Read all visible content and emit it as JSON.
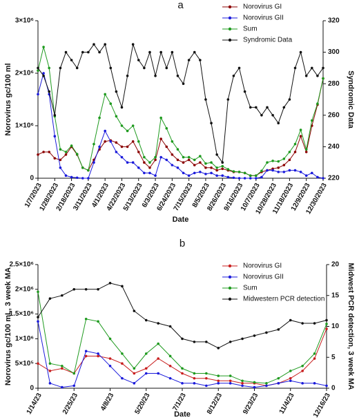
{
  "chart_data": [
    {
      "type": "line",
      "title": "a",
      "xlabel": "Date",
      "ylabel": "Norovirus gc/100 ml",
      "y2label": "Syndromic Data",
      "legend": "top-right",
      "x": [
        "2023-01-07",
        "2023-01-14",
        "2023-01-21",
        "2023-01-28",
        "2023-02-04",
        "2023-02-11",
        "2023-02-18",
        "2023-02-25",
        "2023-03-04",
        "2023-03-11",
        "2023-03-18",
        "2023-03-25",
        "2023-04-01",
        "2023-04-08",
        "2023-04-15",
        "2023-04-22",
        "2023-04-29",
        "2023-05-06",
        "2023-05-13",
        "2023-05-20",
        "2023-05-27",
        "2023-06-03",
        "2023-06-10",
        "2023-06-17",
        "2023-06-24",
        "2023-07-01",
        "2023-07-08",
        "2023-07-15",
        "2023-07-22",
        "2023-07-29",
        "2023-08-05",
        "2023-08-12",
        "2023-08-19",
        "2023-08-26",
        "2023-09-02",
        "2023-09-09",
        "2023-09-16",
        "2023-09-23",
        "2023-09-30",
        "2023-10-07",
        "2023-10-14",
        "2023-10-21",
        "2023-10-28",
        "2023-11-04",
        "2023-11-11",
        "2023-11-18",
        "2023-11-25",
        "2023-12-02",
        "2023-12-09",
        "2023-12-16",
        "2023-12-23",
        "2023-12-30"
      ],
      "xlim": [
        "2023-01-07",
        "2023-12-30"
      ],
      "xticks": [
        {
          "value": "2023-01-07",
          "label": "1/7/2023"
        },
        {
          "value": "2023-01-28",
          "label": "1/28/2023"
        },
        {
          "value": "2023-02-18",
          "label": "2/18/2023"
        },
        {
          "value": "2023-03-11",
          "label": "3/11/2023"
        },
        {
          "value": "2023-04-01",
          "label": "4/1/2023"
        },
        {
          "value": "2023-04-22",
          "label": "4/22/2023"
        },
        {
          "value": "2023-05-13",
          "label": "5/13/2023"
        },
        {
          "value": "2023-06-03",
          "label": "6/3/2023"
        },
        {
          "value": "2023-06-24",
          "label": "6/24/2023"
        },
        {
          "value": "2023-07-15",
          "label": "7/15/2023"
        },
        {
          "value": "2023-08-05",
          "label": "8/5/2023"
        },
        {
          "value": "2023-08-26",
          "label": "8/26/2023"
        },
        {
          "value": "2023-09-16",
          "label": "9/16/2023"
        },
        {
          "value": "2023-10-07",
          "label": "10/7/2023"
        },
        {
          "value": "2023-10-28",
          "label": "10/28/2023"
        },
        {
          "value": "2023-11-18",
          "label": "11/18/2023"
        },
        {
          "value": "2023-12-09",
          "label": "12/9/2023"
        },
        {
          "value": "2023-12-30",
          "label": "12/30/2023"
        }
      ],
      "ylim": [
        0,
        3000000
      ],
      "yticks": [
        0,
        {
          "value": 1000000,
          "label": "1×10⁶"
        },
        {
          "value": 2000000,
          "label": "2×10⁶"
        },
        {
          "value": 3000000,
          "label": "3×10⁶"
        }
      ],
      "y2lim": [
        220,
        320
      ],
      "y2ticks": [
        220,
        240,
        260,
        280,
        300,
        320
      ],
      "series": [
        {
          "name": "Norovirus GI",
          "color": "#8b0000",
          "values": [
            450000,
            500000,
            500000,
            380000,
            350000,
            450000,
            600000,
            450000,
            200000,
            150000,
            350000,
            550000,
            700000,
            720000,
            680000,
            600000,
            600000,
            700000,
            500000,
            300000,
            200000,
            350000,
            750000,
            600000,
            450000,
            350000,
            300000,
            350000,
            250000,
            300000,
            200000,
            200000,
            150000,
            180000,
            150000,
            120000,
            120000,
            100000,
            50000,
            50000,
            120000,
            150000,
            180000,
            200000,
            250000,
            350000,
            500000,
            800000,
            500000,
            1000000,
            1400000,
            1900000
          ]
        },
        {
          "name": "Norovirus GII",
          "color": "#1a1adb",
          "values": [
            1600000,
            2000000,
            1600000,
            800000,
            200000,
            50000,
            20000,
            10000,
            0,
            0,
            300000,
            600000,
            900000,
            700000,
            500000,
            400000,
            300000,
            300000,
            200000,
            100000,
            100000,
            50000,
            400000,
            350000,
            250000,
            200000,
            100000,
            50000,
            100000,
            120000,
            80000,
            100000,
            50000,
            50000,
            20000,
            10000,
            0,
            0,
            0,
            0,
            20000,
            150000,
            150000,
            120000,
            120000,
            150000,
            150000,
            120000,
            50000,
            100000,
            20000,
            0
          ]
        },
        {
          "name": "Sum",
          "color": "#1e9a1e",
          "values": [
            2050000,
            2500000,
            2100000,
            1180000,
            550000,
            500000,
            620000,
            460000,
            200000,
            150000,
            650000,
            1150000,
            1600000,
            1420000,
            1180000,
            1000000,
            900000,
            1000000,
            700000,
            400000,
            300000,
            400000,
            1150000,
            950000,
            700000,
            550000,
            400000,
            400000,
            350000,
            420000,
            280000,
            300000,
            200000,
            230000,
            170000,
            130000,
            120000,
            100000,
            50000,
            50000,
            140000,
            300000,
            330000,
            320000,
            370000,
            500000,
            650000,
            920000,
            550000,
            1100000,
            1420000,
            1900000
          ]
        },
        {
          "name": "Syndromic Data",
          "color": "#111111",
          "axis": "y2",
          "values": [
            290,
            285,
            275,
            260,
            290,
            300,
            295,
            290,
            300,
            300,
            305,
            300,
            305,
            290,
            275,
            265,
            285,
            305,
            295,
            290,
            300,
            285,
            300,
            290,
            300,
            285,
            280,
            295,
            300,
            295,
            270,
            255,
            235,
            230,
            270,
            285,
            290,
            275,
            265,
            265,
            260,
            265,
            260,
            255,
            265,
            270,
            290,
            300,
            285,
            290,
            285,
            290
          ]
        }
      ]
    },
    {
      "type": "line",
      "title": "b",
      "xlabel": "Date",
      "ylabel": "Norovirus gc/100 mL, 3 week MA",
      "y2label": "Midwest PCR detection, 3 week MA",
      "legend": "top-right",
      "x": [
        "2023-01-14",
        "2023-01-28",
        "2023-02-11",
        "2023-02-25",
        "2023-03-11",
        "2023-03-25",
        "2023-04-08",
        "2023-04-22",
        "2023-05-06",
        "2023-05-20",
        "2023-06-03",
        "2023-06-17",
        "2023-07-01",
        "2023-07-15",
        "2023-07-29",
        "2023-08-12",
        "2023-08-26",
        "2023-09-09",
        "2023-09-23",
        "2023-10-07",
        "2023-10-21",
        "2023-11-04",
        "2023-11-18",
        "2023-12-02",
        "2023-12-16"
      ],
      "xlim": [
        "2023-01-14",
        "2023-12-16"
      ],
      "xticks": [
        {
          "value": "2023-01-14",
          "label": "1/14/23"
        },
        {
          "value": "2023-02-25",
          "label": "2/25/23"
        },
        {
          "value": "2023-04-08",
          "label": "4/8/23"
        },
        {
          "value": "2023-05-20",
          "label": "5/20/23"
        },
        {
          "value": "2023-07-01",
          "label": "7/1/23"
        },
        {
          "value": "2023-08-12",
          "label": "8/12/23"
        },
        {
          "value": "2023-09-23",
          "label": "9/23/23"
        },
        {
          "value": "2023-11-04",
          "label": "11/4/23"
        },
        {
          "value": "2023-12-16",
          "label": "12/16/23"
        }
      ],
      "ylim": [
        0,
        2500000
      ],
      "yticks": [
        0,
        {
          "value": 500000,
          "label": "5×10⁵"
        },
        {
          "value": 1000000,
          "label": "1×10⁶"
        },
        {
          "value": 1500000,
          "label": "1.5×10⁶"
        },
        {
          "value": 2000000,
          "label": "2×10⁶"
        },
        {
          "value": 2500000,
          "label": "2.5×10⁶"
        }
      ],
      "y2lim": [
        0,
        20
      ],
      "y2ticks": [
        0,
        5,
        10,
        15,
        20
      ],
      "series": [
        {
          "name": "Norovirus GI",
          "color": "#c81e1e",
          "values": [
            500000,
            350000,
            400000,
            300000,
            650000,
            650000,
            600000,
            500000,
            300000,
            400000,
            600000,
            450000,
            300000,
            200000,
            200000,
            150000,
            150000,
            100000,
            100000,
            50000,
            100000,
            200000,
            350000,
            600000,
            1200000
          ]
        },
        {
          "name": "Norovirus GII",
          "color": "#1a1adb",
          "values": [
            1350000,
            100000,
            20000,
            50000,
            750000,
            700000,
            450000,
            200000,
            100000,
            300000,
            300000,
            200000,
            100000,
            100000,
            50000,
            100000,
            100000,
            50000,
            20000,
            50000,
            100000,
            150000,
            100000,
            100000,
            50000
          ]
        },
        {
          "name": "Sum",
          "color": "#1e9a1e",
          "values": [
            1950000,
            500000,
            450000,
            300000,
            1400000,
            1350000,
            1000000,
            700000,
            400000,
            700000,
            900000,
            650000,
            400000,
            300000,
            300000,
            250000,
            250000,
            150000,
            120000,
            100000,
            200000,
            350000,
            450000,
            700000,
            1300000
          ]
        },
        {
          "name": "Midwestern PCR detection",
          "color": "#111111",
          "axis": "y2",
          "values": [
            11.5,
            14.5,
            15,
            16,
            16,
            16,
            17,
            16.5,
            12.5,
            11,
            10.5,
            10,
            8,
            7.5,
            7.5,
            6.5,
            7.5,
            8,
            8.5,
            9,
            9.5,
            11,
            10.5,
            10.5,
            11
          ]
        }
      ]
    }
  ]
}
